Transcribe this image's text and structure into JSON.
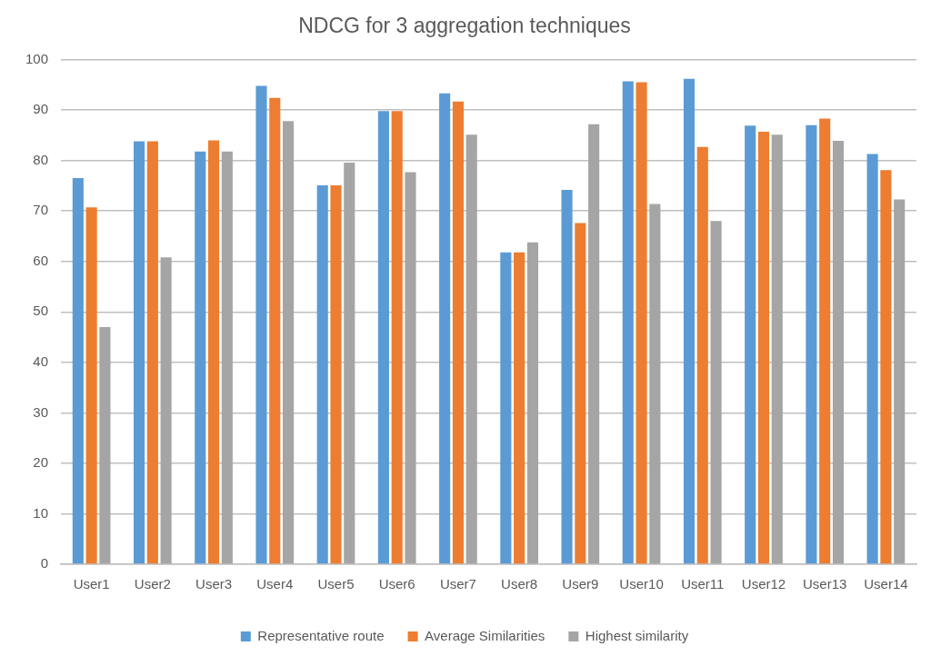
{
  "chart_data": {
    "type": "bar",
    "title": "NDCG for 3 aggregation techniques",
    "categories": [
      "User1",
      "User2",
      "User3",
      "User4",
      "User5",
      "User6",
      "User7",
      "User8",
      "User9",
      "User10",
      "User11",
      "User12",
      "User13",
      "User14"
    ],
    "series": [
      {
        "name": "Representative route",
        "color": "#5b9bd5",
        "values": [
          76.5,
          83.8,
          81.8,
          94.8,
          75.1,
          89.8,
          93.3,
          61.8,
          74.2,
          95.7,
          96.2,
          86.9,
          87.0,
          81.3
        ]
      },
      {
        "name": "Average Similarities",
        "color": "#ed7d31",
        "values": [
          70.7,
          83.8,
          84.0,
          92.4,
          75.1,
          89.8,
          91.7,
          61.8,
          67.6,
          95.5,
          82.7,
          85.7,
          88.3,
          78.1
        ]
      },
      {
        "name": "Highest similarity",
        "color": "#a5a5a5",
        "values": [
          47.0,
          60.8,
          81.8,
          87.8,
          79.6,
          77.7,
          85.1,
          63.8,
          87.2,
          71.4,
          68.0,
          85.1,
          83.9,
          72.3
        ]
      }
    ],
    "ylim": [
      0,
      100
    ],
    "yticks": [
      0,
      10,
      20,
      30,
      40,
      50,
      60,
      70,
      80,
      90,
      100
    ],
    "grid": "y",
    "legend": "bottom"
  }
}
